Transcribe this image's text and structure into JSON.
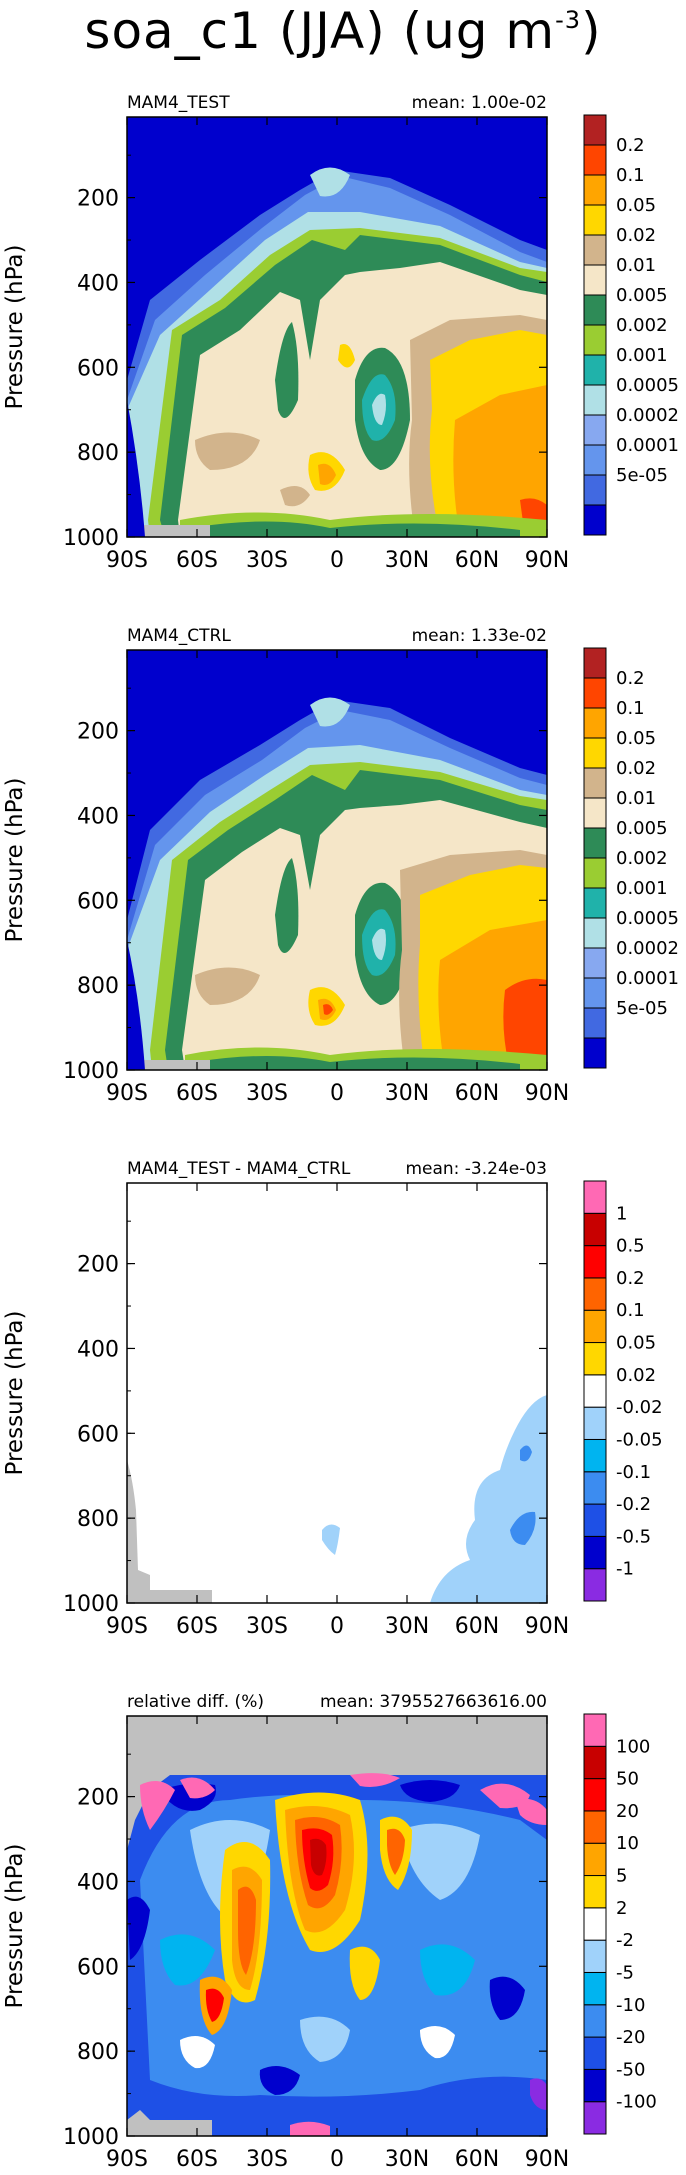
{
  "main_title": {
    "text": "soa_c1 (JJA) (ug m",
    "sup": "-3",
    "tail": ")"
  },
  "chart_data": [
    {
      "type": "heatmap",
      "title_left": "MAM4_TEST",
      "title_right": "mean: 1.00e-02",
      "ylabel": "Pressure (hPa)",
      "x_ticks": [
        "90S",
        "60S",
        "30S",
        "0",
        "30N",
        "60N",
        "90N"
      ],
      "y_ticks": [
        "200",
        "400",
        "600",
        "800",
        "1000"
      ],
      "y_tick_values": [
        200,
        400,
        600,
        800,
        1000
      ],
      "xlim": [
        -90,
        90
      ],
      "ylim": [
        1000,
        10
      ],
      "colorbar_labels": [
        "0.2",
        "0.1",
        "0.05",
        "0.02",
        "0.01",
        "0.005",
        "0.002",
        "0.001",
        "0.0005",
        "0.0002",
        "0.0001",
        "5e-05"
      ],
      "colors": [
        "#0000cd",
        "#4169e1",
        "#6495ed",
        "#87a8f0",
        "#b0e0e6",
        "#20b2aa",
        "#9acd32",
        "#2e8b57",
        "#f5e6c8",
        "#d2b48c",
        "#ffd700",
        "#ffa500",
        "#ff4500",
        "#b22222"
      ]
    },
    {
      "type": "heatmap",
      "title_left": "MAM4_CTRL",
      "title_right": "mean: 1.33e-02",
      "ylabel": "Pressure (hPa)",
      "x_ticks": [
        "90S",
        "60S",
        "30S",
        "0",
        "30N",
        "60N",
        "90N"
      ],
      "y_ticks": [
        "200",
        "400",
        "600",
        "800",
        "1000"
      ],
      "y_tick_values": [
        200,
        400,
        600,
        800,
        1000
      ],
      "xlim": [
        -90,
        90
      ],
      "ylim": [
        1000,
        10
      ],
      "colorbar_labels": [
        "0.2",
        "0.1",
        "0.05",
        "0.02",
        "0.01",
        "0.005",
        "0.002",
        "0.001",
        "0.0005",
        "0.0002",
        "0.0001",
        "5e-05"
      ],
      "colors": [
        "#0000cd",
        "#4169e1",
        "#6495ed",
        "#87a8f0",
        "#b0e0e6",
        "#20b2aa",
        "#9acd32",
        "#2e8b57",
        "#f5e6c8",
        "#d2b48c",
        "#ffd700",
        "#ffa500",
        "#ff4500",
        "#b22222"
      ]
    },
    {
      "type": "heatmap",
      "title_left": "MAM4_TEST - MAM4_CTRL",
      "title_right": "mean: -3.24e-03",
      "ylabel": "Pressure (hPa)",
      "x_ticks": [
        "90S",
        "60S",
        "30S",
        "0",
        "30N",
        "60N",
        "90N"
      ],
      "y_ticks": [
        "200",
        "400",
        "600",
        "800",
        "1000"
      ],
      "y_tick_values": [
        200,
        400,
        600,
        800,
        1000
      ],
      "xlim": [
        -90,
        90
      ],
      "ylim": [
        1000,
        10
      ],
      "colorbar_labels": [
        "1",
        "0.5",
        "0.2",
        "0.1",
        "0.05",
        "0.02",
        "-0.02",
        "-0.05",
        "-0.1",
        "-0.2",
        "-0.5",
        "-1"
      ],
      "colors": [
        "#8a2be2",
        "#0000cd",
        "#1e50e6",
        "#3c8cf0",
        "#00b4f0",
        "#a0d2fa",
        "#ffffff",
        "#ffd700",
        "#ffa500",
        "#ff6400",
        "#ff0000",
        "#c80000",
        "#ff69b4"
      ]
    },
    {
      "type": "heatmap",
      "title_left": "relative diff. (%)",
      "title_right": "mean: 3795527663616.00",
      "ylabel": "Pressure (hPa)",
      "x_ticks": [
        "90S",
        "60S",
        "30S",
        "0",
        "30N",
        "60N",
        "90N"
      ],
      "y_ticks": [
        "200",
        "400",
        "600",
        "800",
        "1000"
      ],
      "y_tick_values": [
        200,
        400,
        600,
        800,
        1000
      ],
      "xlim": [
        -90,
        90
      ],
      "ylim": [
        1000,
        10
      ],
      "colorbar_labels": [
        "100",
        "50",
        "20",
        "10",
        "5",
        "2",
        "-2",
        "-5",
        "-10",
        "-20",
        "-50",
        "-100"
      ],
      "colors": [
        "#8a2be2",
        "#0000cd",
        "#1e50e6",
        "#3c8cf0",
        "#00b4f0",
        "#a0d2fa",
        "#ffffff",
        "#ffd700",
        "#ffa500",
        "#ff6400",
        "#ff0000",
        "#c80000",
        "#ff69b4"
      ]
    }
  ]
}
